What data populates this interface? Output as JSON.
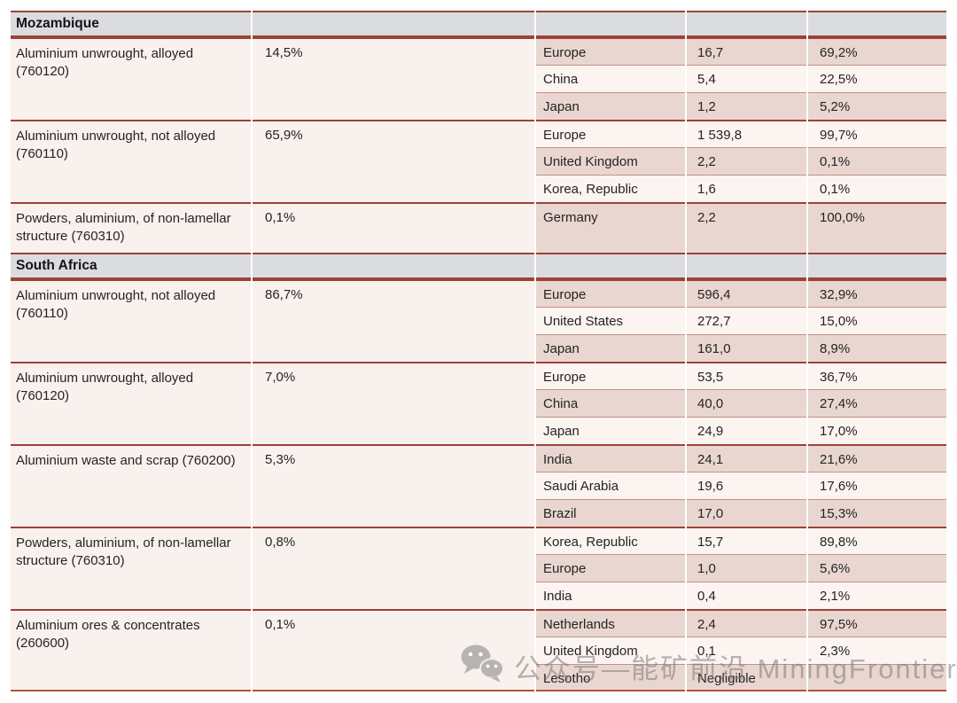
{
  "colors": {
    "section_header_bg": "#dbdcdf",
    "row_light_bg": "#fbf4f0",
    "row_dark_bg": "#e9d6d0",
    "left_column_bg": "#f9f1ed",
    "group_separator_line": "#9c4238",
    "subrow_separator_line": "#c19287",
    "table_bottom_line": "#b5503e",
    "text": "#242424",
    "watermark_gray": "#7d7a77"
  },
  "watermark": {
    "icon": "wechat-icon",
    "text": "公众号—能矿前沿 MiningFrontier"
  },
  "table": {
    "sections": [
      {
        "country": "Mozambique",
        "groups": [
          {
            "commodity": "Aluminium unwrought, alloyed (760120)",
            "export_share": "14,5%",
            "destinations": [
              {
                "name": "Europe",
                "value": "16,7",
                "share": "69,2%"
              },
              {
                "name": "China",
                "value": "5,4",
                "share": "22,5%"
              },
              {
                "name": "Japan",
                "value": "1,2",
                "share": "5,2%"
              }
            ]
          },
          {
            "commodity": "Aluminium unwrought, not alloyed (760110)",
            "export_share": "65,9%",
            "destinations": [
              {
                "name": "Europe",
                "value": "1 539,8",
                "share": "99,7%"
              },
              {
                "name": "United Kingdom",
                "value": "2,2",
                "share": "0,1%"
              },
              {
                "name": "Korea, Republic",
                "value": "1,6",
                "share": "0,1%"
              }
            ]
          },
          {
            "commodity": "Powders, aluminium, of non-lamellar structure (760310)",
            "export_share": "0,1%",
            "tall": true,
            "destinations": [
              {
                "name": "Germany",
                "value": "2,2",
                "share": "100,0%"
              }
            ]
          }
        ]
      },
      {
        "country": "South Africa",
        "groups": [
          {
            "commodity": "Aluminium unwrought, not alloyed (760110)",
            "export_share": "86,7%",
            "destinations": [
              {
                "name": "Europe",
                "value": "596,4",
                "share": "32,9%"
              },
              {
                "name": "United States",
                "value": "272,7",
                "share": "15,0%"
              },
              {
                "name": "Japan",
                "value": "161,0",
                "share": "8,9%"
              }
            ]
          },
          {
            "commodity": "Aluminium unwrought, alloyed (760120)",
            "export_share": "7,0%",
            "destinations": [
              {
                "name": "Europe",
                "value": "53,5",
                "share": "36,7%"
              },
              {
                "name": "China",
                "value": "40,0",
                "share": "27,4%"
              },
              {
                "name": "Japan",
                "value": "24,9",
                "share": "17,0%"
              }
            ]
          },
          {
            "commodity": "Aluminium waste and scrap (760200)",
            "export_share": "5,3%",
            "destinations": [
              {
                "name": "India",
                "value": "24,1",
                "share": "21,6%"
              },
              {
                "name": "Saudi Arabia",
                "value": "19,6",
                "share": "17,6%"
              },
              {
                "name": "Brazil",
                "value": "17,0",
                "share": "15,3%"
              }
            ]
          },
          {
            "commodity": "Powders, aluminium, of non-lamellar structure (760310)",
            "export_share": "0,8%",
            "destinations": [
              {
                "name": "Korea, Republic",
                "value": "15,7",
                "share": "89,8%"
              },
              {
                "name": "Europe",
                "value": "1,0",
                "share": "5,6%"
              },
              {
                "name": "India",
                "value": "0,4",
                "share": "2,1%"
              }
            ]
          },
          {
            "commodity": "Aluminium ores & concentrates (260600)",
            "export_share": "0,1%",
            "destinations": [
              {
                "name": "Netherlands",
                "value": "2,4",
                "share": "97,5%"
              },
              {
                "name": "United Kingdom",
                "value": "0,1",
                "share": "2,3%"
              },
              {
                "name": "Lesotho",
                "value": "Negligible",
                "share": ""
              }
            ]
          }
        ]
      }
    ]
  }
}
